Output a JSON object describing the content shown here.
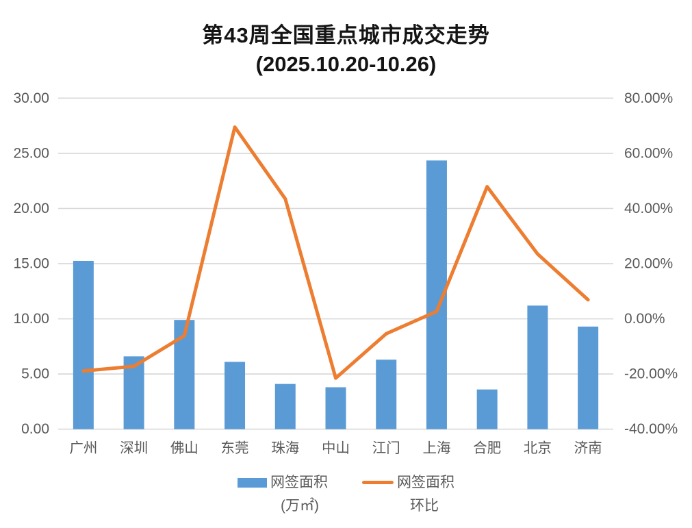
{
  "chart_data": {
    "type": "combo",
    "title": "第43周全国重点城市成交走势",
    "subtitle": "(2025.10.20-10.26)",
    "categories": [
      "广州",
      "深圳",
      "佛山",
      "东莞",
      "珠海",
      "中山",
      "江门",
      "上海",
      "合肥",
      "北京",
      "济南"
    ],
    "series": [
      {
        "name": "网签面积(万㎡)",
        "type": "bar",
        "axis": "left",
        "color": "#5B9BD5",
        "values": [
          15.25,
          6.6,
          9.9,
          6.1,
          4.1,
          3.8,
          6.3,
          24.35,
          3.6,
          11.2,
          9.3
        ]
      },
      {
        "name": "网签面积环比",
        "type": "line",
        "axis": "right",
        "unit": "%",
        "color": "#ED7D31",
        "values": [
          -18.9,
          -17.2,
          -6.1,
          69.5,
          43.5,
          -21.5,
          -5.4,
          2.7,
          47.9,
          23.5,
          6.9
        ]
      }
    ],
    "left_axis": {
      "min": 0,
      "max": 30,
      "step": 5,
      "ticks": [
        "30.00",
        "25.00",
        "20.00",
        "15.00",
        "10.00",
        "5.00",
        "0.00"
      ]
    },
    "right_axis": {
      "min": -40,
      "max": 80,
      "step": 20,
      "ticks": [
        "80.00%",
        "60.00%",
        "40.00%",
        "20.00%",
        "0.00%",
        "-20.00%",
        "-40.00%"
      ]
    },
    "grid": true,
    "legend_position": "bottom"
  },
  "legend": {
    "bar": {
      "line1": "网签面积",
      "line2": "(万㎡)"
    },
    "line": {
      "line1": "网签面积",
      "line2": "环比"
    }
  },
  "colors": {
    "bar": "#5B9BD5",
    "line": "#ED7D31",
    "gridline": "#D9D9D9",
    "axis_text": "#595959",
    "title_text": "#141414",
    "background": "#FFFFFF"
  }
}
